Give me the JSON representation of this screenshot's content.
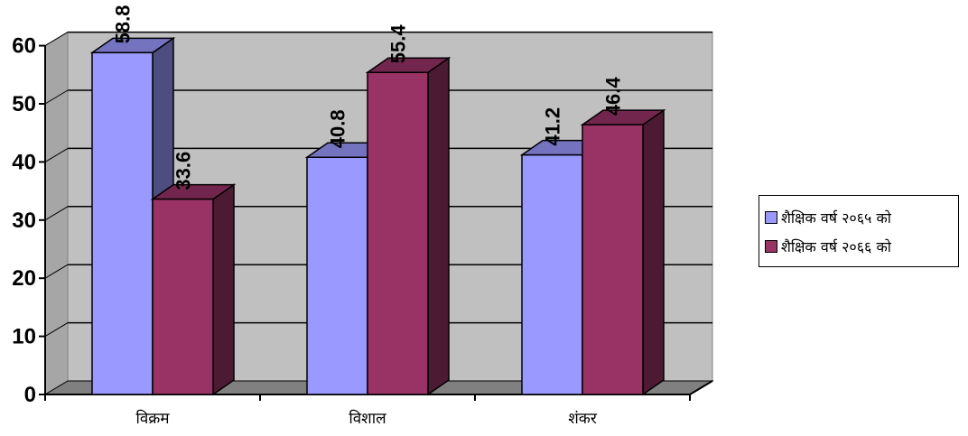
{
  "chart_data": {
    "type": "bar",
    "categories": [
      "विक्रम",
      "विशाल",
      "शंकर"
    ],
    "series": [
      {
        "name": "शैक्षिक वर्ष २०६५ को",
        "values": [
          58.8,
          40.8,
          41.2
        ],
        "color": "#9999ff"
      },
      {
        "name": "शैक्षिक वर्ष २०६६ को",
        "values": [
          33.6,
          55.4,
          46.4
        ],
        "color": "#993366"
      }
    ],
    "value_labels": [
      [
        "58.8",
        "40.8",
        "41.2"
      ],
      [
        "33.6",
        "55.4",
        "46.4"
      ]
    ],
    "y_ticks": [
      "0",
      "10",
      "20",
      "30",
      "40",
      "50",
      "60"
    ],
    "ylim": [
      0,
      60
    ],
    "title": "",
    "xlabel": "",
    "ylabel": "",
    "grid": true,
    "legend_position": "right",
    "style": "3d-clustered-column",
    "wall_color": "#c0c0c0",
    "floor_color": "#808080"
  }
}
